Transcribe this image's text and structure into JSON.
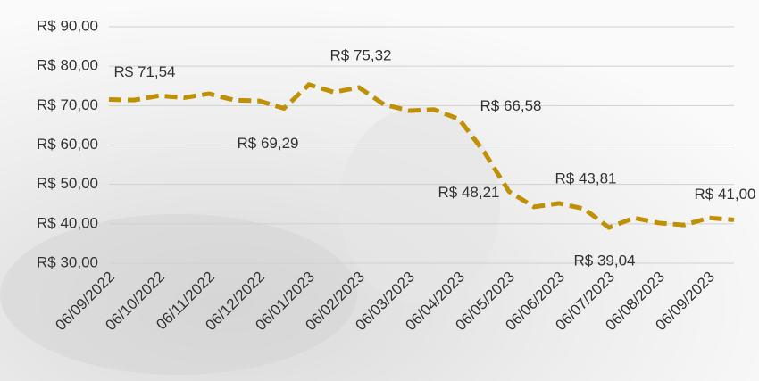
{
  "chart_data": {
    "type": "line",
    "categories": [
      "06/09/2022",
      null,
      "06/10/2022",
      null,
      "06/11/2022",
      null,
      "06/12/2022",
      null,
      "06/01/2023",
      null,
      "06/02/2023",
      null,
      "06/03/2023",
      null,
      "06/04/2023",
      null,
      "06/05/2023",
      null,
      "06/06/2023",
      null,
      "06/07/2023",
      null,
      "06/08/2023",
      null,
      "06/09/2023",
      null
    ],
    "values": [
      71.54,
      71.4,
      72.5,
      72.0,
      73.0,
      71.4,
      71.2,
      69.29,
      75.32,
      73.4,
      74.6,
      70.3,
      68.7,
      69.0,
      66.58,
      58.3,
      48.21,
      44.3,
      45.2,
      43.81,
      39.04,
      41.5,
      40.2,
      39.7,
      41.5,
      41.0
    ],
    "value_labels": [
      "R$ 71,54",
      null,
      null,
      null,
      null,
      null,
      null,
      "R$ 69,29",
      "R$ 75,32",
      null,
      null,
      null,
      null,
      null,
      "R$ 66,58",
      null,
      "R$ 48,21",
      null,
      null,
      "R$ 43,81",
      "R$ 39,04",
      null,
      null,
      null,
      null,
      "R$ 41,00"
    ],
    "color": "#bf9000",
    "ylim": [
      30,
      90
    ],
    "yticks": [
      {
        "value": 30,
        "label": "R$ 30,00"
      },
      {
        "value": 40,
        "label": "R$ 40,00"
      },
      {
        "value": 50,
        "label": "R$ 50,00"
      },
      {
        "value": 60,
        "label": "R$ 60,00"
      },
      {
        "value": 70,
        "label": "R$ 70,00"
      },
      {
        "value": 80,
        "label": "R$ 80,00"
      },
      {
        "value": 90,
        "label": "R$ 90,00"
      }
    ],
    "grid": true
  }
}
